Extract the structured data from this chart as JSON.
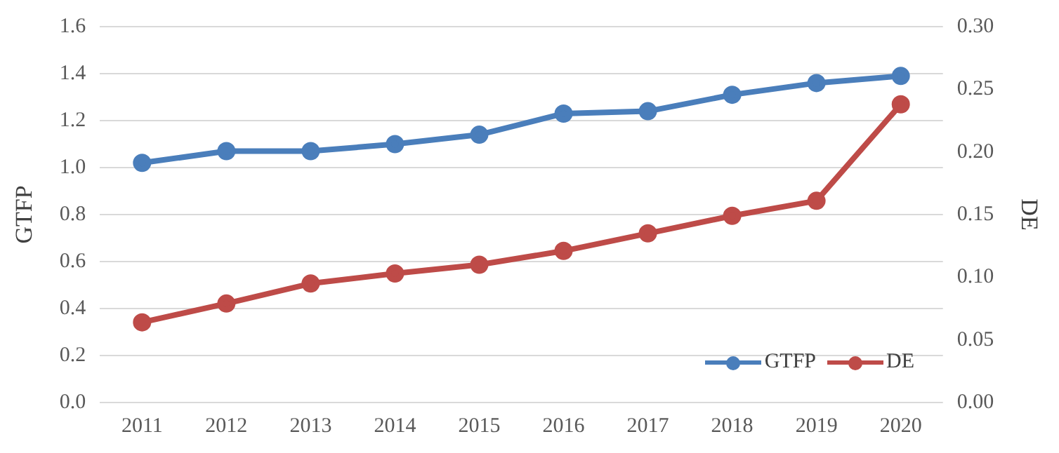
{
  "chart_data": {
    "type": "line",
    "ylabel": "GTFP",
    "y2label": "DE",
    "categories": [
      "2011",
      "2012",
      "2013",
      "2014",
      "2015",
      "2016",
      "2017",
      "2018",
      "2019",
      "2020"
    ],
    "series": [
      {
        "name": "GTFP",
        "color": "#4a7ebb",
        "values": [
          1.02,
          1.07,
          1.07,
          1.1,
          1.14,
          1.23,
          1.24,
          1.31,
          1.36,
          1.39
        ]
      },
      {
        "name": "DE",
        "color": "#be4b48",
        "axis": "y2",
        "values": [
          0.064,
          0.079,
          0.095,
          0.103,
          0.11,
          0.121,
          0.135,
          0.149,
          0.161,
          0.238
        ]
      }
    ],
    "ylim": [
      0,
      1.6
    ],
    "yticks": [
      {
        "value": 0,
        "label": "0.0"
      },
      {
        "value": 0.2,
        "label": "0.2"
      },
      {
        "value": 0.4,
        "label": "0.4"
      },
      {
        "value": 0.6,
        "label": "0.6"
      },
      {
        "value": 0.8,
        "label": "0.8"
      },
      {
        "value": 1,
        "label": "1.0"
      },
      {
        "value": 1.2,
        "label": "1.2"
      },
      {
        "value": 1.4,
        "label": "1.4"
      },
      {
        "value": 1.6,
        "label": "1.6"
      }
    ],
    "y2lim": [
      0,
      0.3
    ],
    "y2ticks": [
      {
        "value": 0,
        "label": "0.00"
      },
      {
        "value": 0.05,
        "label": "0.05"
      },
      {
        "value": 0.1,
        "label": "0.10"
      },
      {
        "value": 0.15,
        "label": "0.15"
      },
      {
        "value": 0.2,
        "label": "0.20"
      },
      {
        "value": 0.25,
        "label": "0.25"
      },
      {
        "value": 0.3,
        "label": "0.30"
      }
    ],
    "grid": "y",
    "legend": "bottom right",
    "marker": "circle",
    "line_style": "solid"
  }
}
